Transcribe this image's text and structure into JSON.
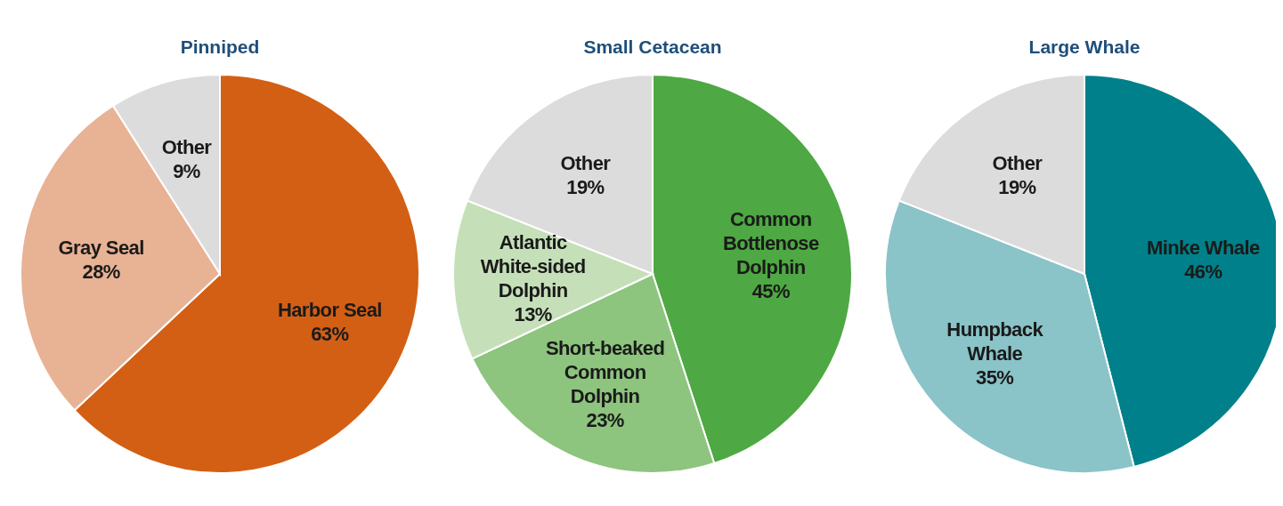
{
  "chart_data": [
    {
      "type": "pie",
      "title": "Pinniped",
      "categories": [
        "Harbor Seal",
        "Gray Seal",
        "Other"
      ],
      "values": [
        63,
        28,
        9
      ],
      "colors": [
        "#d35f14",
        "#e8b294",
        "#dcdcdc"
      ],
      "value_labels": [
        "63%",
        "28%",
        "9%"
      ]
    },
    {
      "type": "pie",
      "title": "Small Cetacean",
      "categories": [
        "Common Bottlenose Dolphin",
        "Short-beaked Common Dolphin",
        "Atlantic White-sided Dolphin",
        "Other"
      ],
      "values": [
        45,
        23,
        13,
        19
      ],
      "colors": [
        "#4ea843",
        "#8dc47e",
        "#c5e0b8",
        "#dcdcdc"
      ],
      "value_labels": [
        "45%",
        "23%",
        "13%",
        "19%"
      ]
    },
    {
      "type": "pie",
      "title": "Large Whale",
      "categories": [
        "Minke Whale",
        "Humpback Whale",
        "Other"
      ],
      "values": [
        46,
        35,
        19
      ],
      "colors": [
        "#00808a",
        "#8ac3c8",
        "#dcdcdc"
      ],
      "value_labels": [
        "46%",
        "35%",
        "19%"
      ]
    }
  ]
}
